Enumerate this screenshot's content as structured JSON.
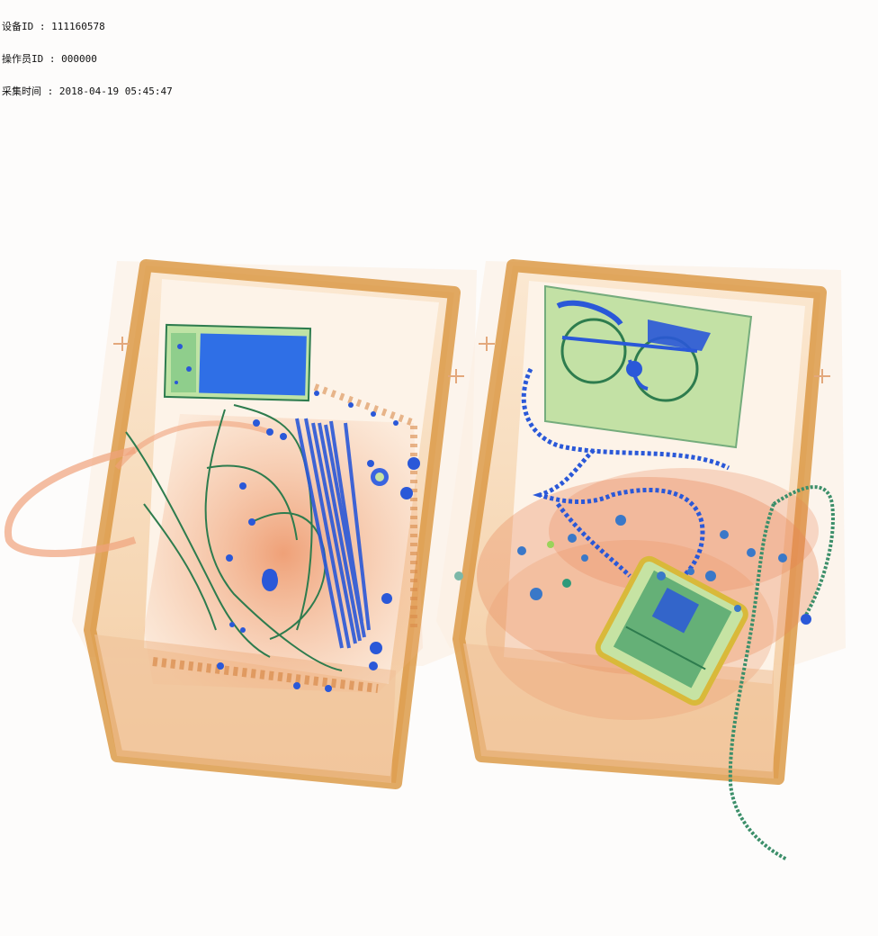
{
  "scan_info": {
    "device_line": "设备ID : 111160578",
    "operator_line": "操作员ID : 000000",
    "time_line": "采集时间 : 2018-04-19 05:45:47"
  },
  "colors": {
    "background": "#fdfcfb",
    "tray_organic": "#e8a060",
    "tray_edge": "#d68a3c",
    "bag_organic": "#e87850",
    "metal_blue": "#2a58d8",
    "mixed_green": "#3c9a64",
    "plastic_light_green": "#a9d98a",
    "yellow_dense": "#d9b93a"
  }
}
